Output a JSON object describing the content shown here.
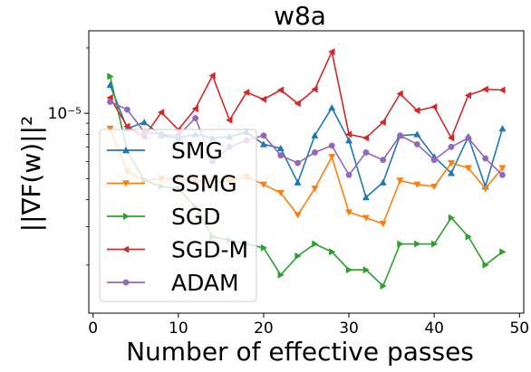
{
  "chart_data": {
    "type": "line",
    "title": "w8a",
    "xlabel": "Number of effective passes",
    "ylabel": "||∇F(w)||²",
    "xlim": [
      -0.5,
      50.5
    ],
    "ylim": [
      1.2e-06,
      2.4e-05
    ],
    "yscale": "log",
    "xticks": [
      0,
      10,
      20,
      30,
      40,
      50
    ],
    "xtick_labels": [
      "0",
      "10",
      "20",
      "30",
      "40",
      "50"
    ],
    "ytick_major": [
      1e-05
    ],
    "ytick_major_labels": [
      "10⁻⁵"
    ],
    "legend": {
      "position": "lower-left"
    },
    "grid": false,
    "x": [
      2,
      4,
      6,
      8,
      10,
      12,
      14,
      16,
      18,
      20,
      22,
      24,
      26,
      28,
      30,
      32,
      34,
      36,
      38,
      40,
      42,
      44,
      46,
      48
    ],
    "series": [
      {
        "name": "SMG",
        "color": "#1f77b4",
        "marker": "triangle-up",
        "values": [
          1.35e-05,
          8.5e-06,
          9.1e-06,
          7.9e-06,
          7.7e-06,
          8e-06,
          7.7e-06,
          7.8e-06,
          8.2e-06,
          7.2e-06,
          6.9e-06,
          4.8e-06,
          7.9e-06,
          1.06e-05,
          7.5e-06,
          4.1e-06,
          4.8e-06,
          7.9e-06,
          8e-06,
          6.3e-06,
          5.3e-06,
          7.8e-06,
          4.6e-06,
          8.5e-06
        ]
      },
      {
        "name": "SSMG",
        "color": "#ff7f0e",
        "marker": "triangle-down",
        "values": [
          8.5e-06,
          5.4e-06,
          4.9e-06,
          5e-06,
          5e-06,
          4.9e-06,
          4.8e-06,
          4.9e-06,
          5.1e-06,
          4.7e-06,
          4.3e-06,
          3.4e-06,
          4.5e-06,
          6.3e-06,
          3.5e-06,
          3.3e-06,
          3.1e-06,
          4.9e-06,
          4.7e-06,
          4.6e-06,
          5.9e-06,
          5.6e-06,
          4.5e-06,
          5.6e-06
        ]
      },
      {
        "name": "SGD",
        "color": "#2ca02c",
        "marker": "triangle-right",
        "values": [
          1.48e-05,
          6.7e-06,
          4.9e-06,
          4.6e-06,
          4.5e-06,
          3.7e-06,
          2.7e-06,
          2.6e-06,
          2.5e-06,
          2.4e-06,
          1.8e-06,
          2.2e-06,
          2.5e-06,
          2.3e-06,
          1.9e-06,
          1.9e-06,
          1.6e-06,
          2.5e-06,
          2.5e-06,
          2.5e-06,
          3.3e-06,
          2.7e-06,
          2e-06,
          2.3e-06
        ]
      },
      {
        "name": "SGD-M",
        "color": "#d62728",
        "marker": "triangle-left",
        "values": [
          1.18e-05,
          8.7e-06,
          7.8e-06,
          1.01e-05,
          8.4e-06,
          1.05e-05,
          1.49e-05,
          9.3e-06,
          1.25e-05,
          1.16e-05,
          1.28e-05,
          1.11e-05,
          1.29e-05,
          1.92e-05,
          8e-06,
          7.7e-06,
          9.1e-06,
          1.23e-05,
          1.03e-05,
          1.07e-05,
          7.7e-06,
          1.21e-05,
          1.29e-05,
          1.28e-05
        ]
      },
      {
        "name": "ADAM",
        "color": "#9467bd",
        "marker": "circle",
        "values": [
          1.13e-05,
          1.04e-05,
          8.2e-06,
          8e-06,
          7.9e-06,
          9.5e-06,
          6e-06,
          7e-06,
          7.5e-06,
          7.9e-06,
          6.4e-06,
          5.9e-06,
          6.6e-06,
          7.1e-06,
          5.2e-06,
          6.6e-06,
          6.1e-06,
          7.9e-06,
          7.2e-06,
          6.1e-06,
          7e-06,
          7.7e-06,
          6.2e-06,
          5.2e-06
        ]
      }
    ]
  }
}
